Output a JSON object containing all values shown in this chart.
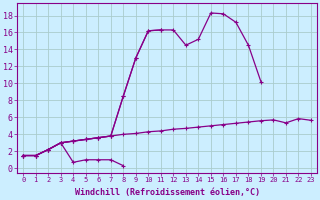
{
  "background_color": "#cceeff",
  "grid_color": "#aacccc",
  "line_color": "#880088",
  "marker": "+",
  "marker_size": 3,
  "marker_lw": 0.8,
  "line_width": 0.9,
  "xlabel": "Windchill (Refroidissement éolien,°C)",
  "xlabel_fontsize": 6.0,
  "xtick_fontsize": 5.0,
  "ytick_fontsize": 6.0,
  "xlim": [
    -0.5,
    23.5
  ],
  "ylim": [
    -0.5,
    19.5
  ],
  "yticks": [
    0,
    2,
    4,
    6,
    8,
    10,
    12,
    14,
    16,
    18
  ],
  "xticks": [
    0,
    1,
    2,
    3,
    4,
    5,
    6,
    7,
    8,
    9,
    10,
    11,
    12,
    13,
    14,
    15,
    16,
    17,
    18,
    19,
    20,
    21,
    22,
    23
  ],
  "lines": [
    {
      "x": [
        0,
        1,
        2,
        3,
        4,
        5,
        6,
        7,
        8
      ],
      "y": [
        1.5,
        1.5,
        2.2,
        3.0,
        0.7,
        1.0,
        1.0,
        1.0,
        0.3
      ]
    },
    {
      "x": [
        0,
        1,
        2,
        3,
        4,
        5,
        6,
        7,
        8,
        9,
        10,
        11,
        12,
        13,
        14,
        15,
        16,
        17,
        18,
        19
      ],
      "y": [
        1.5,
        1.5,
        2.2,
        3.0,
        3.2,
        3.4,
        3.6,
        3.8,
        8.5,
        13.0,
        16.2,
        16.3,
        16.3,
        14.5,
        15.2,
        18.3,
        18.2,
        17.2,
        14.5,
        10.2
      ]
    },
    {
      "x": [
        0,
        1,
        2,
        3,
        4,
        5,
        6,
        7,
        8,
        9,
        10,
        11
      ],
      "y": [
        1.5,
        1.5,
        2.2,
        3.0,
        3.2,
        3.4,
        3.6,
        3.8,
        8.5,
        13.0,
        16.2,
        16.3
      ]
    },
    {
      "x": [
        0,
        1,
        2,
        3,
        4,
        5,
        6,
        7,
        8,
        9,
        10,
        11,
        12,
        13,
        14,
        15,
        16,
        17,
        18,
        19,
        20,
        21,
        22,
        23
      ],
      "y": [
        1.5,
        1.5,
        2.2,
        3.0,
        3.2,
        3.4,
        3.6,
        3.8,
        4.0,
        4.1,
        4.3,
        4.4,
        4.6,
        4.7,
        4.85,
        5.0,
        5.15,
        5.3,
        5.45,
        5.6,
        5.7,
        5.35,
        5.85,
        5.65
      ]
    }
  ]
}
